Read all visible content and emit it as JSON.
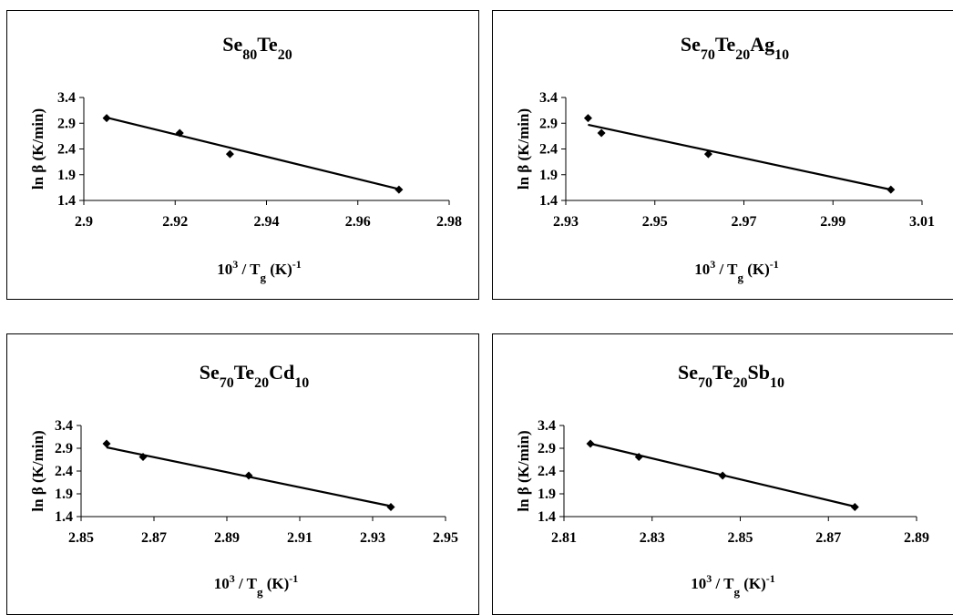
{
  "chart_data": [
    {
      "type": "scatter",
      "title_parts": [
        [
          "Se",
          ""
        ],
        [
          "80",
          "sub"
        ],
        [
          "Te",
          ""
        ],
        [
          "20",
          "sub"
        ]
      ],
      "xlabel_parts": [
        [
          "10",
          ""
        ],
        [
          "3",
          "sup"
        ],
        [
          " / T",
          ""
        ],
        [
          "g",
          "sub"
        ],
        [
          " (K)",
          ""
        ],
        [
          "-1",
          "sup"
        ]
      ],
      "ylabel": "ln β (K/min)",
      "x_ticks": [
        "2.9",
        "2.92",
        "2.94",
        "2.96",
        "2.98"
      ],
      "y_ticks": [
        "1.4",
        "1.9",
        "2.4",
        "2.9",
        "3.4"
      ],
      "xlim": [
        2.9,
        2.98
      ],
      "ylim": [
        1.4,
        3.4
      ],
      "series": [
        {
          "x": [
            2.905,
            2.921,
            2.932,
            2.969
          ],
          "y": [
            3.0,
            2.71,
            2.3,
            1.61
          ]
        }
      ],
      "fit_line": {
        "x": [
          2.905,
          2.969
        ],
        "y": [
          3.01,
          1.62
        ]
      }
    },
    {
      "type": "scatter",
      "title_parts": [
        [
          "Se",
          ""
        ],
        [
          "70",
          "sub"
        ],
        [
          "Te",
          ""
        ],
        [
          "20",
          "sub"
        ],
        [
          "Ag",
          ""
        ],
        [
          "10",
          "sub"
        ]
      ],
      "xlabel_parts": [
        [
          "10",
          ""
        ],
        [
          "3",
          "sup"
        ],
        [
          " / T",
          ""
        ],
        [
          "g",
          "sub"
        ],
        [
          " (K)",
          ""
        ],
        [
          "-1",
          "sup"
        ]
      ],
      "ylabel": "ln β (K/min)",
      "x_ticks": [
        "2.93",
        "2.95",
        "2.97",
        "2.99",
        "3.01"
      ],
      "y_ticks": [
        "1.4",
        "1.9",
        "2.4",
        "2.9",
        "3.4"
      ],
      "xlim": [
        2.93,
        3.01
      ],
      "ylim": [
        1.4,
        3.4
      ],
      "series": [
        {
          "x": [
            2.935,
            2.938,
            2.962,
            3.003
          ],
          "y": [
            3.0,
            2.71,
            2.3,
            1.61
          ]
        }
      ],
      "fit_line": {
        "x": [
          2.935,
          3.003
        ],
        "y": [
          2.87,
          1.61
        ]
      }
    },
    {
      "type": "scatter",
      "title_parts": [
        [
          "Se",
          ""
        ],
        [
          "70",
          "sub"
        ],
        [
          "Te",
          ""
        ],
        [
          "20",
          "sub"
        ],
        [
          "Cd",
          ""
        ],
        [
          "10",
          "sub"
        ]
      ],
      "xlabel_parts": [
        [
          "10",
          ""
        ],
        [
          "3",
          "sup"
        ],
        [
          " / T",
          ""
        ],
        [
          "g",
          "sub"
        ],
        [
          " (K)",
          ""
        ],
        [
          "-1",
          "sup"
        ]
      ],
      "ylabel": "ln β (K/min)",
      "x_ticks": [
        "2.85",
        "2.87",
        "2.89",
        "2.91",
        "2.93",
        "2.95"
      ],
      "y_ticks": [
        "1.4",
        "1.9",
        "2.4",
        "2.9",
        "3.4"
      ],
      "xlim": [
        2.85,
        2.95
      ],
      "ylim": [
        1.4,
        3.4
      ],
      "series": [
        {
          "x": [
            2.857,
            2.867,
            2.896,
            2.935
          ],
          "y": [
            3.0,
            2.71,
            2.3,
            1.61
          ]
        }
      ],
      "fit_line": {
        "x": [
          2.857,
          2.935
        ],
        "y": [
          2.92,
          1.63
        ]
      }
    },
    {
      "type": "scatter",
      "title_parts": [
        [
          "Se",
          ""
        ],
        [
          "70",
          "sub"
        ],
        [
          "Te",
          ""
        ],
        [
          "20",
          "sub"
        ],
        [
          "Sb",
          ""
        ],
        [
          "10",
          "sub"
        ]
      ],
      "xlabel_parts": [
        [
          "10",
          ""
        ],
        [
          "3",
          "sup"
        ],
        [
          " / T",
          ""
        ],
        [
          "g",
          "sub"
        ],
        [
          " (K)",
          ""
        ],
        [
          "-1",
          "sup"
        ]
      ],
      "ylabel": "ln β (K/min)",
      "x_ticks": [
        "2.81",
        "2.83",
        "2.85",
        "2.87",
        "2.89"
      ],
      "y_ticks": [
        "1.4",
        "1.9",
        "2.4",
        "2.9",
        "3.4"
      ],
      "xlim": [
        2.81,
        2.89
      ],
      "ylim": [
        1.4,
        3.4
      ],
      "series": [
        {
          "x": [
            2.816,
            2.827,
            2.846,
            2.876
          ],
          "y": [
            3.0,
            2.71,
            2.3,
            1.61
          ]
        }
      ],
      "fit_line": {
        "x": [
          2.816,
          2.876
        ],
        "y": [
          3.0,
          1.62
        ]
      }
    }
  ]
}
